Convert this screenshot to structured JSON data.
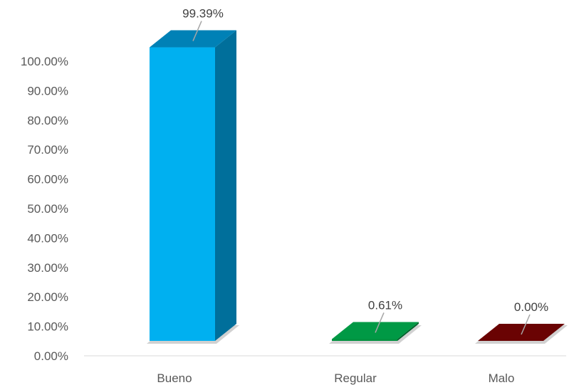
{
  "chart_data": {
    "type": "bar",
    "style": "3d-column",
    "categories": [
      "Bueno",
      "Regular",
      "Malo"
    ],
    "values": [
      99.39,
      0.61,
      0.0
    ],
    "data_labels": [
      "99.39%",
      "0.61%",
      "0.00%"
    ],
    "y_ticks": [
      "0.00%",
      "10.00%",
      "20.00%",
      "30.00%",
      "40.00%",
      "50.00%",
      "60.00%",
      "70.00%",
      "80.00%",
      "90.00%",
      "100.00%"
    ],
    "ylim": [
      0,
      100
    ],
    "grid": false,
    "legend": "none",
    "colors": {
      "bars": [
        "#00b0f0",
        "#00913f",
        "#5c0000"
      ],
      "bar_sides": [
        "#006f9b",
        "#00622b",
        "#3d0000"
      ],
      "bar_tops": [
        "#0081b6",
        "#009945",
        "#6a0303"
      ],
      "axis": "#d9d9d9",
      "leader": "#a6a6a6",
      "shadow": "#9a9a9a"
    }
  }
}
